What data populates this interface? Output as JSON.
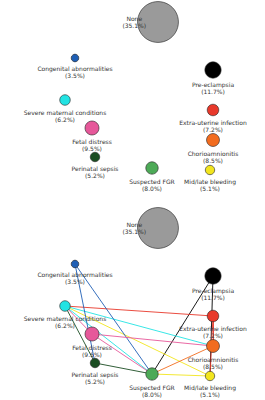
{
  "chart_data": [
    {
      "type": "graph",
      "categories": [
        "None",
        "Congenital abnormalities",
        "Pre-eclampsia",
        "Severe maternal conditions",
        "Extra-uterine infection",
        "Chorioamnionitis",
        "Fetal distress",
        "Mid/late bleeding",
        "Perinatal sepsis",
        "Suspected FGR"
      ],
      "values": [
        35.1,
        3.5,
        11.7,
        6.2,
        7.2,
        8.5,
        9.5,
        5.1,
        5.2,
        8.0
      ],
      "value_labels": [
        "(35.1%)",
        "(3.5%)",
        "(11.7%)",
        "(6.2%)",
        "(7.2%)",
        "(8.5%)",
        "(9.5%)",
        "(5.1%)",
        "(5.2%)",
        "(8.0%)"
      ],
      "colors": [
        "#9a9a9a",
        "#1f5fb5",
        "#000000",
        "#22e3e3",
        "#e8392b",
        "#f26c1f",
        "#e6589a",
        "#f2e51e",
        "#1b4d22",
        "#4daa57"
      ]
    },
    {
      "type": "graph",
      "categories": [
        "None",
        "Congenital abnormalities",
        "Pre-eclampsia",
        "Severe maternal conditions",
        "Extra-uterine infection",
        "Chorioamnionitis",
        "Fetal distress",
        "Mid/late bleeding",
        "Perinatal sepsis",
        "Suspected FGR"
      ],
      "values": [
        35.1,
        3.5,
        11.7,
        6.2,
        7.2,
        8.5,
        9.5,
        5.1,
        5.2,
        8.0
      ],
      "value_labels": [
        "(35.1%)",
        "(3.5%)",
        "(11.7%)",
        "(6.2%)",
        "(7.2%)",
        "(8.5%)",
        "(9.5%)",
        "(5.1%)",
        "(5.2%)",
        "(8.0%)"
      ],
      "colors": [
        "#9a9a9a",
        "#1f5fb5",
        "#000000",
        "#22e3e3",
        "#e8392b",
        "#f26c1f",
        "#e6589a",
        "#f2e51e",
        "#1b4d22",
        "#4daa57"
      ],
      "links": [
        {
          "source": "Pre-eclampsia",
          "target": "Suspected FGR",
          "color": "#000000"
        },
        {
          "source": "Pre-eclampsia",
          "target": "Mid/late bleeding",
          "color": "#000000"
        },
        {
          "source": "Severe maternal conditions",
          "target": "Extra-uterine infection",
          "color": "#e8392b"
        },
        {
          "source": "Severe maternal conditions",
          "target": "Chorioamnionitis",
          "color": "#22e3e3"
        },
        {
          "source": "Severe maternal conditions",
          "target": "Mid/late bleeding",
          "color": "#f2e51e"
        },
        {
          "source": "Severe maternal conditions",
          "target": "Fetal distress",
          "color": "#e6589a"
        },
        {
          "source": "Severe maternal conditions",
          "target": "Perinatal sepsis",
          "color": "#1b4d22"
        },
        {
          "source": "Severe maternal conditions",
          "target": "Suspected FGR",
          "color": "#22e3e3"
        },
        {
          "source": "Congenital abnormalities",
          "target": "Perinatal sepsis",
          "color": "#1f5fb5"
        },
        {
          "source": "Congenital abnormalities",
          "target": "Suspected FGR",
          "color": "#1f5fb5"
        },
        {
          "source": "Fetal distress",
          "target": "Chorioamnionitis",
          "color": "#e6589a"
        },
        {
          "source": "Fetal distress",
          "target": "Suspected FGR",
          "color": "#e6589a"
        },
        {
          "source": "Extra-uterine infection",
          "target": "Chorioamnionitis",
          "color": "#e8392b"
        },
        {
          "source": "Extra-uterine infection",
          "target": "Mid/late bleeding",
          "color": "#e8392b"
        },
        {
          "source": "Chorioamnionitis",
          "target": "Suspected FGR",
          "color": "#f26c1f"
        },
        {
          "source": "Mid/late bleeding",
          "target": "Suspected FGR",
          "color": "#f2e51e"
        },
        {
          "source": "Perinatal sepsis",
          "target": "Suspected FGR",
          "color": "#1b4d22"
        }
      ]
    }
  ]
}
